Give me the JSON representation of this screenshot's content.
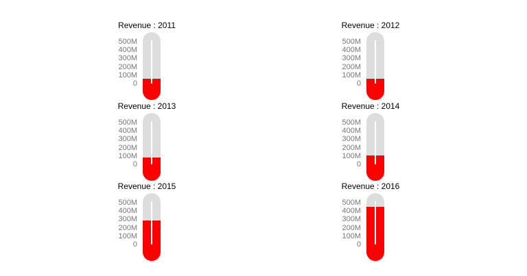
{
  "chart_data": [
    {
      "type": "thermometer",
      "title": "Revenue : 2011",
      "value_millions": 55,
      "ylim": [
        0,
        500
      ],
      "tick_labels": [
        "0",
        "100M",
        "200M",
        "300M",
        "400M",
        "500M"
      ]
    },
    {
      "type": "thermometer",
      "title": "Revenue : 2012",
      "value_millions": 60,
      "ylim": [
        0,
        500
      ],
      "tick_labels": [
        "0",
        "100M",
        "200M",
        "300M",
        "400M",
        "500M"
      ]
    },
    {
      "type": "thermometer",
      "title": "Revenue : 2013",
      "value_millions": 85,
      "ylim": [
        0,
        500
      ],
      "tick_labels": [
        "0",
        "100M",
        "200M",
        "300M",
        "400M",
        "500M"
      ]
    },
    {
      "type": "thermometer",
      "title": "Revenue : 2014",
      "value_millions": 110,
      "ylim": [
        0,
        500
      ],
      "tick_labels": [
        "0",
        "100M",
        "200M",
        "300M",
        "400M",
        "500M"
      ]
    },
    {
      "type": "thermometer",
      "title": "Revenue : 2015",
      "value_millions": 285,
      "ylim": [
        0,
        500
      ],
      "tick_labels": [
        "0",
        "100M",
        "200M",
        "300M",
        "400M",
        "500M"
      ]
    },
    {
      "type": "thermometer",
      "title": "Revenue : 2016",
      "value_millions": 455,
      "ylim": [
        0,
        500
      ],
      "tick_labels": [
        "0",
        "100M",
        "200M",
        "300M",
        "400M",
        "500M"
      ]
    }
  ],
  "colors": {
    "fill": "#ff0000",
    "tube": "#dddddd",
    "needle": "#ffffff",
    "tick_text": "#777777",
    "title_text": "#000000"
  }
}
